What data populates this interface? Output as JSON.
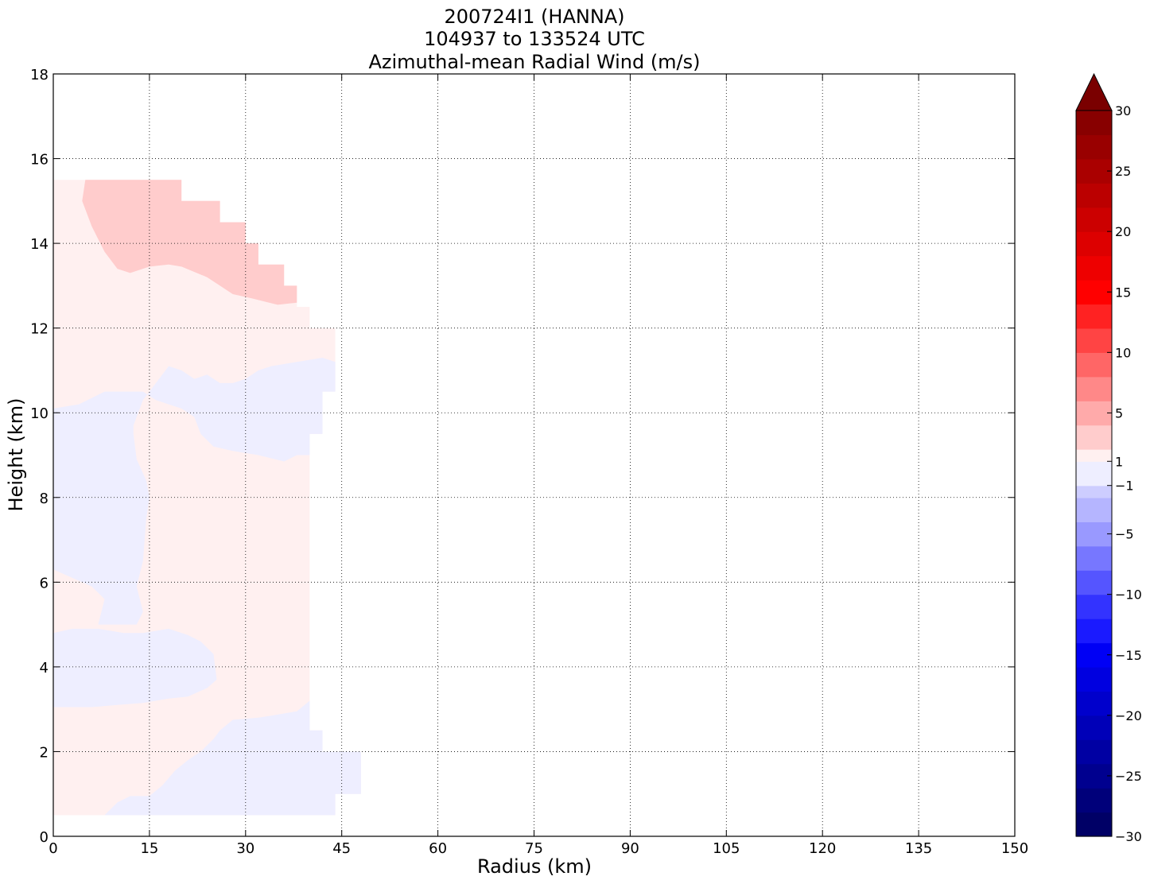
{
  "chart_data": {
    "type": "heatmap",
    "title_lines": [
      "200724I1 (HANNA)",
      "104937 to 133524 UTC",
      "Azimuthal-mean Radial Wind (m/s)"
    ],
    "xlabel": "Radius (km)",
    "ylabel": "Height (km)",
    "xlim": [
      0,
      150
    ],
    "ylim": [
      0,
      18
    ],
    "x_ticks": [
      0,
      15,
      30,
      45,
      60,
      75,
      90,
      105,
      120,
      135,
      150
    ],
    "y_ticks": [
      0,
      2,
      4,
      6,
      8,
      10,
      12,
      14,
      16,
      18
    ],
    "grid": true,
    "colorbar": {
      "vmin": -30,
      "vmax": 30,
      "extend": "max",
      "tick_values": [
        -30,
        -25,
        -20,
        -15,
        -10,
        -5,
        -1,
        1,
        5,
        10,
        15,
        20,
        25,
        30
      ],
      "tick_labels": [
        "−30",
        "−25",
        "−20",
        "−15",
        "−10",
        "−5",
        "−1",
        "1",
        "5",
        "10",
        "15",
        "20",
        "25",
        "30"
      ],
      "bands": [
        {
          "from": -30,
          "to": -28,
          "color": "#000066"
        },
        {
          "from": -28,
          "to": -26,
          "color": "#00007a"
        },
        {
          "from": -26,
          "to": -24,
          "color": "#00008f"
        },
        {
          "from": -24,
          "to": -22,
          "color": "#0000a3"
        },
        {
          "from": -22,
          "to": -20,
          "color": "#0000b8"
        },
        {
          "from": -20,
          "to": -18,
          "color": "#0000cc"
        },
        {
          "from": -18,
          "to": -16,
          "color": "#0000e0"
        },
        {
          "from": -16,
          "to": -14,
          "color": "#0000f5"
        },
        {
          "from": -14,
          "to": -12,
          "color": "#1a1aff"
        },
        {
          "from": -12,
          "to": -10,
          "color": "#3333ff"
        },
        {
          "from": -10,
          "to": -8,
          "color": "#5555ff"
        },
        {
          "from": -8,
          "to": -6,
          "color": "#7777ff"
        },
        {
          "from": -6,
          "to": -4,
          "color": "#9999ff"
        },
        {
          "from": -4,
          "to": -2,
          "color": "#b5b5ff"
        },
        {
          "from": -2,
          "to": -1,
          "color": "#cdcdff"
        },
        {
          "from": -1,
          "to": 1,
          "color": "#eeeeff"
        },
        {
          "from": 1,
          "to": 2,
          "color": "#fff0f0"
        },
        {
          "from": 2,
          "to": 4,
          "color": "#ffcccc"
        },
        {
          "from": 4,
          "to": 6,
          "color": "#ffaaaa"
        },
        {
          "from": 6,
          "to": 8,
          "color": "#ff8888"
        },
        {
          "from": 8,
          "to": 10,
          "color": "#ff6666"
        },
        {
          "from": 10,
          "to": 12,
          "color": "#ff4444"
        },
        {
          "from": 12,
          "to": 14,
          "color": "#ff2222"
        },
        {
          "from": 14,
          "to": 16,
          "color": "#ff0000"
        },
        {
          "from": 16,
          "to": 18,
          "color": "#ee0000"
        },
        {
          "from": 18,
          "to": 20,
          "color": "#dd0000"
        },
        {
          "from": 20,
          "to": 22,
          "color": "#cc0000"
        },
        {
          "from": 22,
          "to": 24,
          "color": "#bb0000"
        },
        {
          "from": 24,
          "to": 26,
          "color": "#aa0000"
        },
        {
          "from": 26,
          "to": 28,
          "color": "#990000"
        },
        {
          "from": 28,
          "to": 30,
          "color": "#880000"
        }
      ],
      "over_color": "#7a0000"
    },
    "regions": [
      {
        "name": "positive-weak",
        "color": "#fff0f0",
        "points": [
          [
            0,
            0.5
          ],
          [
            44,
            0.5
          ],
          [
            44,
            1.0
          ],
          [
            48,
            1.0
          ],
          [
            48,
            2.0
          ],
          [
            42,
            2.0
          ],
          [
            42,
            2.5
          ],
          [
            40,
            2.5
          ],
          [
            40,
            9.5
          ],
          [
            42,
            9.5
          ],
          [
            42,
            10.5
          ],
          [
            44,
            10.5
          ],
          [
            44,
            12.0
          ],
          [
            40,
            12.0
          ],
          [
            40,
            12.5
          ],
          [
            38,
            12.5
          ],
          [
            38,
            13.0
          ],
          [
            36,
            13.0
          ],
          [
            36,
            13.5
          ],
          [
            32,
            13.5
          ],
          [
            32,
            14.0
          ],
          [
            30,
            14.0
          ],
          [
            30,
            14.5
          ],
          [
            26,
            14.5
          ],
          [
            26,
            15.0
          ],
          [
            20,
            15.0
          ],
          [
            20,
            15.5
          ],
          [
            0,
            15.5
          ]
        ]
      },
      {
        "name": "positive-moderate",
        "color": "#ffcccc",
        "points": [
          [
            5,
            15.5
          ],
          [
            20,
            15.5
          ],
          [
            20,
            15.0
          ],
          [
            26,
            15.0
          ],
          [
            26,
            14.5
          ],
          [
            30,
            14.5
          ],
          [
            30,
            14.0
          ],
          [
            32,
            14.0
          ],
          [
            32,
            13.5
          ],
          [
            36,
            13.5
          ],
          [
            36,
            13.0
          ],
          [
            38,
            13.0
          ],
          [
            38,
            12.6
          ],
          [
            35,
            12.55
          ],
          [
            31,
            12.7
          ],
          [
            28,
            12.8
          ],
          [
            26,
            13.0
          ],
          [
            24,
            13.2
          ],
          [
            20,
            13.45
          ],
          [
            18,
            13.5
          ],
          [
            15,
            13.45
          ],
          [
            12,
            13.3
          ],
          [
            10,
            13.4
          ],
          [
            8,
            13.8
          ],
          [
            6,
            14.4
          ],
          [
            4.5,
            15.0
          ]
        ]
      },
      {
        "name": "negative-weak-upper",
        "color": "#eeeeff",
        "points": [
          [
            0,
            6.3
          ],
          [
            3,
            6.1
          ],
          [
            6,
            5.9
          ],
          [
            8,
            5.6
          ],
          [
            7.5,
            5.3
          ],
          [
            7,
            5.0
          ],
          [
            10,
            5.0
          ],
          [
            13,
            5.0
          ],
          [
            14,
            5.3
          ],
          [
            13,
            5.9
          ],
          [
            14,
            6.5
          ],
          [
            14.5,
            7.5
          ],
          [
            15,
            8.0
          ],
          [
            14.5,
            8.4
          ],
          [
            13,
            8.9
          ],
          [
            12.5,
            9.5
          ],
          [
            12.5,
            9.7
          ],
          [
            14,
            10.3
          ],
          [
            15,
            10.5
          ],
          [
            16,
            10.7
          ],
          [
            18,
            11.1
          ],
          [
            20,
            11.0
          ],
          [
            22,
            10.8
          ],
          [
            24,
            10.9
          ],
          [
            26,
            10.7
          ],
          [
            28,
            10.7
          ],
          [
            30,
            10.8
          ],
          [
            32,
            11.0
          ],
          [
            34,
            11.1
          ],
          [
            38,
            11.2
          ],
          [
            42,
            11.3
          ],
          [
            44,
            11.2
          ],
          [
            44,
            10.5
          ],
          [
            42,
            10.5
          ],
          [
            42,
            9.5
          ],
          [
            40,
            9.5
          ],
          [
            40,
            9.0
          ],
          [
            38,
            9.0
          ],
          [
            36,
            8.85
          ],
          [
            32,
            9.0
          ],
          [
            28,
            9.1
          ],
          [
            25,
            9.2
          ],
          [
            23,
            9.5
          ],
          [
            22,
            9.9
          ],
          [
            20,
            10.1
          ],
          [
            18,
            10.2
          ],
          [
            16,
            10.3
          ],
          [
            14,
            10.5
          ],
          [
            8,
            10.5
          ],
          [
            4,
            10.2
          ],
          [
            0,
            10.1
          ]
        ]
      },
      {
        "name": "negative-weak-mid",
        "color": "#eeeeff",
        "points": [
          [
            0,
            4.8
          ],
          [
            3,
            4.9
          ],
          [
            7,
            4.9
          ],
          [
            11,
            4.8
          ],
          [
            14,
            4.8
          ],
          [
            18,
            4.9
          ],
          [
            21,
            4.75
          ],
          [
            23,
            4.6
          ],
          [
            25,
            4.3
          ],
          [
            25.5,
            3.7
          ],
          [
            24,
            3.5
          ],
          [
            21,
            3.3
          ],
          [
            18,
            3.25
          ],
          [
            14,
            3.15
          ],
          [
            10,
            3.1
          ],
          [
            6,
            3.05
          ],
          [
            3,
            3.05
          ],
          [
            0,
            3.05
          ]
        ]
      },
      {
        "name": "negative-weak-lower",
        "color": "#eeeeff",
        "points": [
          [
            8,
            0.5
          ],
          [
            44,
            0.5
          ],
          [
            44,
            1.0
          ],
          [
            48,
            1.0
          ],
          [
            48,
            2.0
          ],
          [
            42,
            2.0
          ],
          [
            42,
            2.5
          ],
          [
            40,
            2.5
          ],
          [
            40,
            3.2
          ],
          [
            38,
            2.95
          ],
          [
            34,
            2.85
          ],
          [
            32,
            2.8
          ],
          [
            28,
            2.75
          ],
          [
            26,
            2.5
          ],
          [
            25,
            2.3
          ],
          [
            23,
            2.0
          ],
          [
            21,
            1.8
          ],
          [
            19,
            1.55
          ],
          [
            17,
            1.2
          ],
          [
            15,
            0.95
          ],
          [
            12,
            0.95
          ],
          [
            10,
            0.8
          ]
        ]
      }
    ]
  }
}
